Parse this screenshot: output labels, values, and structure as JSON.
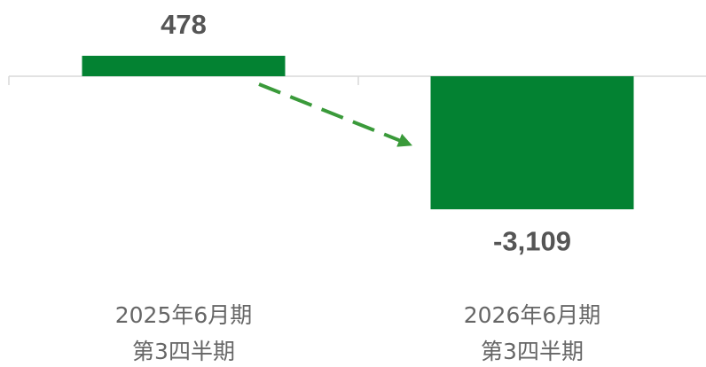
{
  "chart_data": {
    "type": "bar",
    "categories": [
      [
        "2025年6月期",
        "第3四半期"
      ],
      [
        "2026年6月期",
        "第3四半期"
      ]
    ],
    "values": [
      478,
      -3109
    ],
    "value_labels": [
      "478",
      "-3,109"
    ],
    "color": "#038232",
    "ylim": [
      -3500,
      1000
    ]
  }
}
